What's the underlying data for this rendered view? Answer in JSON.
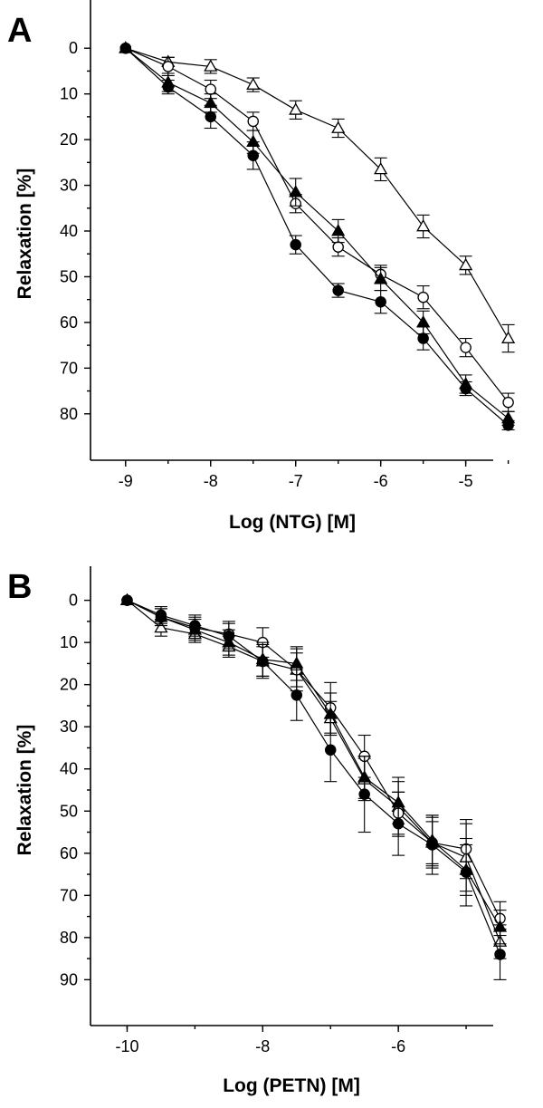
{
  "chart_data": [
    {
      "panel": "A",
      "type": "line",
      "xlabel": "Log (NTG) [M]",
      "ylabel": "Relaxation [%]",
      "xlim": [
        -9.2,
        -4.4
      ],
      "ylim": [
        -5,
        85
      ],
      "y_inverted": true,
      "xticks": [
        -9,
        -8,
        -7,
        -6,
        -5
      ],
      "yticks": [
        0,
        10,
        20,
        30,
        40,
        50,
        60,
        70,
        80
      ],
      "x": [
        -9,
        -8.5,
        -8,
        -7.5,
        -7,
        -6.5,
        -6,
        -5.5,
        -5,
        -4.5
      ],
      "grid": false,
      "series": [
        {
          "marker": "open-triangle",
          "values": [
            0,
            3,
            4,
            8,
            13.5,
            17.5,
            26.5,
            39,
            47.5,
            63.5
          ],
          "errors": [
            0.5,
            1.0,
            1.5,
            1.5,
            2.0,
            2.0,
            2.5,
            2.5,
            2.0,
            3.0
          ]
        },
        {
          "marker": "open-circle",
          "values": [
            0,
            4,
            9,
            16,
            34,
            43.5,
            49.5,
            54.5,
            65.5,
            77.5
          ],
          "errors": [
            0.5,
            2.0,
            2.0,
            2.0,
            2.0,
            2.0,
            2.0,
            2.5,
            2.0,
            2.0
          ]
        },
        {
          "marker": "filled-triangle",
          "values": [
            0,
            7.5,
            12,
            20.5,
            31.5,
            40,
            50.5,
            60,
            73.5,
            81
          ],
          "errors": [
            0.5,
            2.0,
            2.0,
            2.5,
            3.0,
            2.5,
            2.5,
            2.5,
            2.0,
            1.5
          ]
        },
        {
          "marker": "filled-circle",
          "values": [
            0,
            8.5,
            15,
            23.5,
            43,
            53,
            55.5,
            63.5,
            74.5,
            82.5
          ],
          "errors": [
            0.5,
            1.5,
            2.5,
            3.0,
            2.0,
            1.5,
            2.5,
            2.5,
            1.5,
            1.0
          ]
        }
      ]
    },
    {
      "panel": "B",
      "type": "line",
      "xlabel": "Log (PETN) [M]",
      "ylabel": "Relaxation [%]",
      "xlim": [
        -10.3,
        -4.2
      ],
      "ylim": [
        -4,
        94
      ],
      "y_inverted": true,
      "xticks": [
        -10,
        -8,
        -6
      ],
      "yticks": [
        0,
        10,
        20,
        30,
        40,
        50,
        60,
        70,
        80,
        90
      ],
      "x": [
        -10,
        -9.5,
        -9,
        -8.5,
        -8,
        -7.5,
        -7,
        -6.5,
        -6,
        -5.5,
        -5,
        -4.5
      ],
      "grid": false,
      "series": [
        {
          "marker": "open-triangle",
          "values": [
            0,
            6.5,
            8,
            11,
            14.5,
            16.5,
            28,
            42.5,
            49,
            57.5,
            61,
            81
          ],
          "errors": [
            0.5,
            2.0,
            2.0,
            2.5,
            3.5,
            4.0,
            4.0,
            5.0,
            7.0,
            6.0,
            8.0,
            4.0
          ]
        },
        {
          "marker": "open-circle",
          "values": [
            0,
            4,
            6.5,
            8,
            10,
            16.5,
            25.5,
            37,
            50.5,
            57.5,
            59,
            75.5
          ],
          "errors": [
            0.5,
            2.0,
            2.5,
            3.0,
            3.5,
            5.0,
            6.0,
            5.0,
            5.0,
            5.0,
            7.0,
            4.0
          ]
        },
        {
          "marker": "filled-triangle",
          "values": [
            0,
            4,
            7,
            10,
            14,
            15,
            27,
            42,
            48,
            57,
            64,
            77.5
          ],
          "errors": [
            0.5,
            2.0,
            2.5,
            3.0,
            4.0,
            4.0,
            5.0,
            5.0,
            5.0,
            6.0,
            6.0,
            4.0
          ]
        },
        {
          "marker": "filled-circle",
          "values": [
            0,
            3.5,
            6,
            8.5,
            14.5,
            22.5,
            35.5,
            46,
            53,
            58,
            64.5,
            84
          ],
          "errors": [
            0.5,
            2.0,
            2.5,
            3.0,
            4.0,
            6.0,
            7.5,
            9.0,
            7.5,
            7.0,
            8.0,
            6.0
          ]
        }
      ]
    }
  ]
}
